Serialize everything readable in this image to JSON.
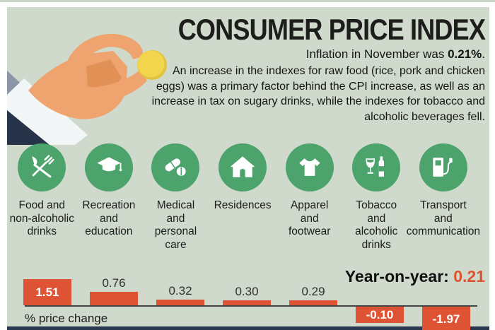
{
  "header": {
    "title": "CONSUMER PRICE INDEX",
    "intro": {
      "prefix": "Inflation in November was ",
      "highlight": "0.21%",
      "suffix": "."
    },
    "body": "An increase in the indexes for raw food (rice, pork and chicken eggs) was a primary factor behind the CPI increase, as well as an increase in tax on sugary drinks, while the indexes for tobacco and alcoholic beverages fell."
  },
  "illustration": {
    "name": "hand-holding-coin",
    "coin_color": "#f2d44d",
    "skin_color": "#efa470",
    "sleeve_color": "#273349"
  },
  "categories": [
    {
      "label": "Food and\nnon-alcoholic\ndrinks",
      "icon": "cutlery-icon"
    },
    {
      "label": "Recreation\nand\neducation",
      "icon": "graduation-cap-icon"
    },
    {
      "label": "Medical\nand\npersonal\ncare",
      "icon": "pills-icon"
    },
    {
      "label": "Residences",
      "icon": "house-icon"
    },
    {
      "label": "Apparel\nand\nfootwear",
      "icon": "tshirt-icon"
    },
    {
      "label": "Tobacco\nand\nalcoholic\ndrinks",
      "icon": "wine-and-bottle-icon"
    },
    {
      "label": "Transport\nand\ncommunication",
      "icon": "fuel-pump-icon"
    }
  ],
  "chart_data": {
    "type": "bar",
    "categories": [
      "Food and non-alcoholic drinks",
      "Recreation and education",
      "Medical and personal care",
      "Residences",
      "Apparel and footwear",
      "Tobacco and alcoholic drinks",
      "Transport and communication"
    ],
    "values": [
      1.51,
      0.76,
      0.32,
      0.3,
      0.29,
      -0.1,
      -1.97
    ],
    "bar_labels": [
      "1.51",
      "0.76",
      "0.32",
      "0.30",
      "0.29",
      "-0.10",
      "-1.97"
    ],
    "title": "",
    "xlabel": "% price change",
    "ylabel": "",
    "baseline": 0,
    "grid": false,
    "legend": false,
    "annotation": {
      "label": "Year-on-year: ",
      "value": "0.21"
    }
  },
  "colors": {
    "background": "#cfdacd",
    "circle_green": "#4ca36b",
    "bar_orange": "#dd5334",
    "accent_orange": "#e0512f",
    "text_dark": "#1d1d1b",
    "footer_navy": "#2b3950"
  }
}
